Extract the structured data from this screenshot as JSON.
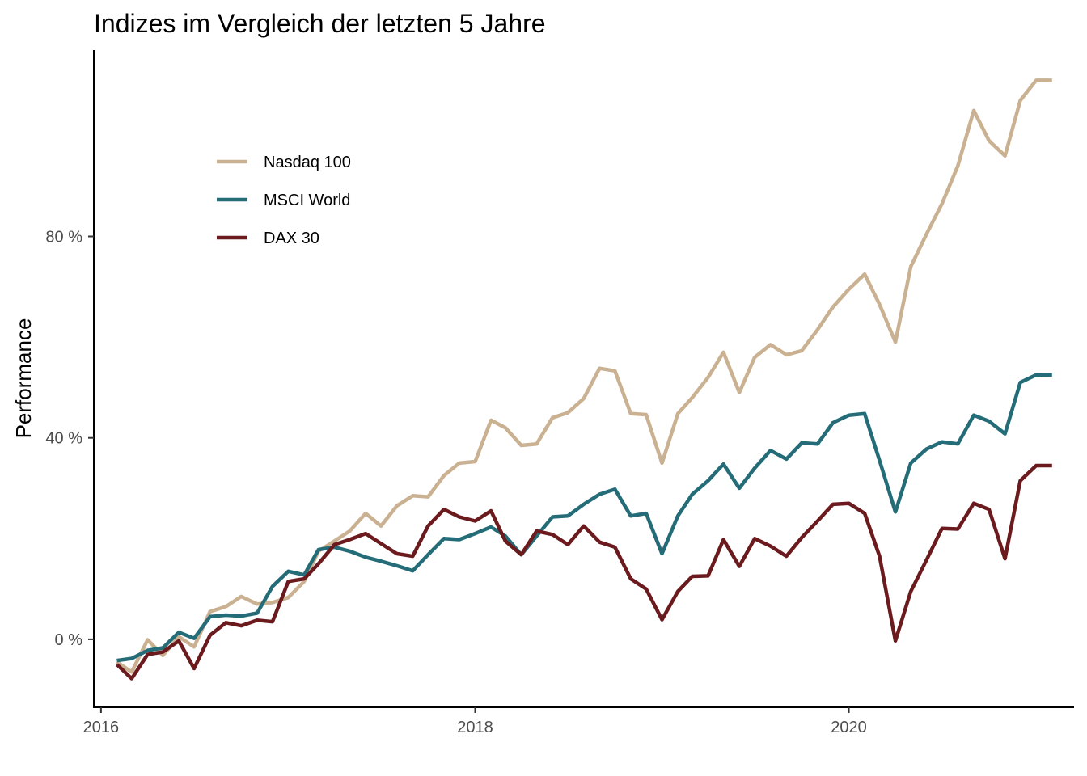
{
  "chart_data": {
    "type": "line",
    "title": "Indizes im Vergleich der letzten 5 Jahre",
    "xlabel": "",
    "ylabel": "Performance",
    "x_axis": {
      "type": "date",
      "range": [
        "2015-12-18",
        "2021-03-16"
      ],
      "ticks": [
        {
          "value": "2016-01-01",
          "label": "2016"
        },
        {
          "value": "2018-01-01",
          "label": "2018"
        },
        {
          "value": "2020-01-01",
          "label": "2020"
        }
      ]
    },
    "y_axis": {
      "unit": "percent",
      "range": [
        -13.5,
        117
      ],
      "ticks": [
        {
          "value": 0,
          "label": "0 %"
        },
        {
          "value": 40,
          "label": "40 %"
        },
        {
          "value": 80,
          "label": "80 %"
        }
      ]
    },
    "grid": false,
    "legend_position": "top-left",
    "x": [
      "2016-02-01",
      "2016-03-01",
      "2016-04-01",
      "2016-05-01",
      "2016-06-01",
      "2016-07-01",
      "2016-08-01",
      "2016-09-01",
      "2016-10-01",
      "2016-11-01",
      "2016-12-01",
      "2017-01-01",
      "2017-02-01",
      "2017-03-01",
      "2017-04-01",
      "2017-05-01",
      "2017-06-01",
      "2017-07-01",
      "2017-08-01",
      "2017-09-01",
      "2017-10-01",
      "2017-11-01",
      "2017-12-01",
      "2018-01-01",
      "2018-02-01",
      "2018-03-01",
      "2018-04-01",
      "2018-05-01",
      "2018-06-01",
      "2018-07-01",
      "2018-08-01",
      "2018-09-01",
      "2018-10-01",
      "2018-11-01",
      "2018-12-01",
      "2019-01-01",
      "2019-02-01",
      "2019-03-01",
      "2019-04-01",
      "2019-05-01",
      "2019-06-01",
      "2019-07-01",
      "2019-08-01",
      "2019-09-01",
      "2019-10-01",
      "2019-11-01",
      "2019-12-01",
      "2020-01-01",
      "2020-02-01",
      "2020-03-01",
      "2020-04-01",
      "2020-05-01",
      "2020-06-01",
      "2020-07-01",
      "2020-08-01",
      "2020-09-01",
      "2020-10-01",
      "2020-11-01",
      "2020-12-01",
      "2021-01-01",
      "2021-02-01"
    ],
    "series": [
      {
        "name": "Nasdaq 100",
        "color": "#C9B191",
        "values": [
          -4.5,
          -6.5,
          -0.1,
          -3.2,
          0.5,
          -1.5,
          5.5,
          6.5,
          8.5,
          7.0,
          7.3,
          8.3,
          11.5,
          17.5,
          19.5,
          21.5,
          25.0,
          22.5,
          26.5,
          28.5,
          28.3,
          32.5,
          35.0,
          35.3,
          43.5,
          42.0,
          38.5,
          38.8,
          44.0,
          45.0,
          47.8,
          53.8,
          53.3,
          44.8,
          44.6,
          35.0,
          44.8,
          48.0,
          52.0,
          57.0,
          49.0,
          56.0,
          58.5,
          56.5,
          57.3,
          61.5,
          66.0,
          69.5,
          72.5,
          66.5,
          59.0,
          74.0,
          80.5,
          86.5,
          94.0,
          105.0,
          99.0,
          96.0,
          107.0,
          111.0,
          111.0
        ]
      },
      {
        "name": "MSCI World",
        "color": "#246C77",
        "values": [
          -4.2,
          -3.8,
          -2.2,
          -1.7,
          1.4,
          0.2,
          4.5,
          4.8,
          4.6,
          5.2,
          10.5,
          13.5,
          12.8,
          17.8,
          18.3,
          17.5,
          16.3,
          15.5,
          14.6,
          13.6,
          16.8,
          20.0,
          19.8,
          21.0,
          22.3,
          20.5,
          16.8,
          20.5,
          24.3,
          24.5,
          26.8,
          28.8,
          29.8,
          24.5,
          25.0,
          17.0,
          24.5,
          28.8,
          31.5,
          34.8,
          30.0,
          34.0,
          37.5,
          35.8,
          39.0,
          38.8,
          43.0,
          44.5,
          44.8,
          35.5,
          25.3,
          35.0,
          37.8,
          39.2,
          38.8,
          44.5,
          43.3,
          40.8,
          51.0,
          52.5,
          52.5
        ]
      },
      {
        "name": "DAX 30",
        "color": "#6B1A1E",
        "values": [
          -5.0,
          -7.8,
          -3.0,
          -2.5,
          -0.3,
          -5.8,
          0.8,
          3.3,
          2.7,
          3.8,
          3.5,
          11.5,
          12.0,
          15.0,
          18.8,
          19.8,
          21.0,
          19.0,
          17.0,
          16.5,
          22.5,
          25.8,
          24.3,
          23.5,
          25.5,
          19.5,
          16.8,
          21.5,
          20.8,
          18.8,
          22.5,
          19.3,
          18.3,
          12.0,
          10.0,
          3.9,
          9.5,
          12.5,
          12.6,
          19.8,
          14.5,
          20.0,
          18.5,
          16.5,
          20.2,
          23.5,
          26.8,
          27.0,
          25.0,
          16.5,
          -0.3,
          9.5,
          15.8,
          22.0,
          21.9,
          27.0,
          25.8,
          16.0,
          31.5,
          34.5,
          34.5
        ]
      }
    ]
  }
}
